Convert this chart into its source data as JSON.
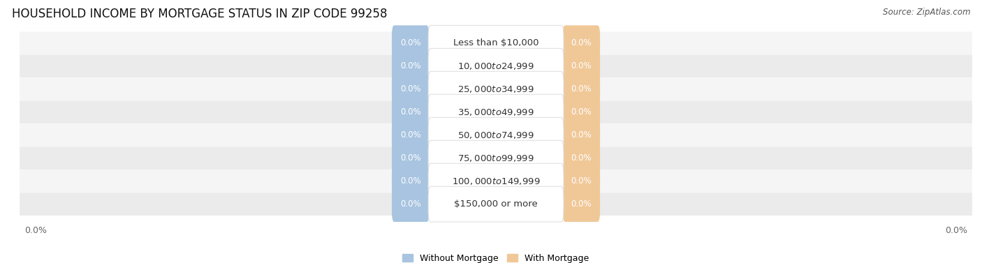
{
  "title": "HOUSEHOLD INCOME BY MORTGAGE STATUS IN ZIP CODE 99258",
  "source": "Source: ZipAtlas.com",
  "categories": [
    "Less than $10,000",
    "$10,000 to $24,999",
    "$25,000 to $34,999",
    "$35,000 to $49,999",
    "$50,000 to $74,999",
    "$75,000 to $99,999",
    "$100,000 to $149,999",
    "$150,000 or more"
  ],
  "without_mortgage": [
    0.0,
    0.0,
    0.0,
    0.0,
    0.0,
    0.0,
    0.0,
    0.0
  ],
  "with_mortgage": [
    0.0,
    0.0,
    0.0,
    0.0,
    0.0,
    0.0,
    0.0,
    0.0
  ],
  "without_mortgage_color": "#a8c4e0",
  "with_mortgage_color": "#f0c898",
  "row_bg_light": "#f5f5f5",
  "row_bg_dark": "#ebebeb",
  "label_text_color": "#333333",
  "value_text_color": "#ffffff",
  "axis_label_color": "#666666",
  "legend_without": "Without Mortgage",
  "legend_with": "With Mortgage",
  "title_fontsize": 12,
  "source_fontsize": 8.5,
  "bar_label_fontsize": 8.5,
  "cat_label_fontsize": 9.5,
  "axis_tick_fontsize": 9
}
